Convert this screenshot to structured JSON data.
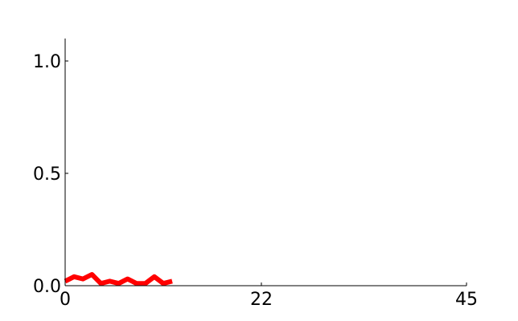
{
  "chart_data": {
    "type": "line",
    "title": "",
    "xlabel": "",
    "ylabel": "",
    "xlim": [
      0,
      45
    ],
    "ylim": [
      0,
      1.1
    ],
    "x_ticks": [
      0,
      22,
      45
    ],
    "x_tick_labels": [
      "0",
      "22",
      "45"
    ],
    "y_ticks": [
      0,
      0.5,
      1.0
    ],
    "y_tick_labels": [
      "0.0",
      "0.5",
      "1.0"
    ],
    "grid": false,
    "legend": "none",
    "series": [
      {
        "color": "#ff0000",
        "x": [
          0,
          1,
          2,
          3,
          4,
          5,
          6,
          7,
          8,
          9,
          10,
          11,
          12
        ],
        "y": [
          0.02,
          0.04,
          0.03,
          0.05,
          0.01,
          0.02,
          0.01,
          0.03,
          0.01,
          0.01,
          0.04,
          0.01,
          0.02
        ]
      }
    ]
  }
}
